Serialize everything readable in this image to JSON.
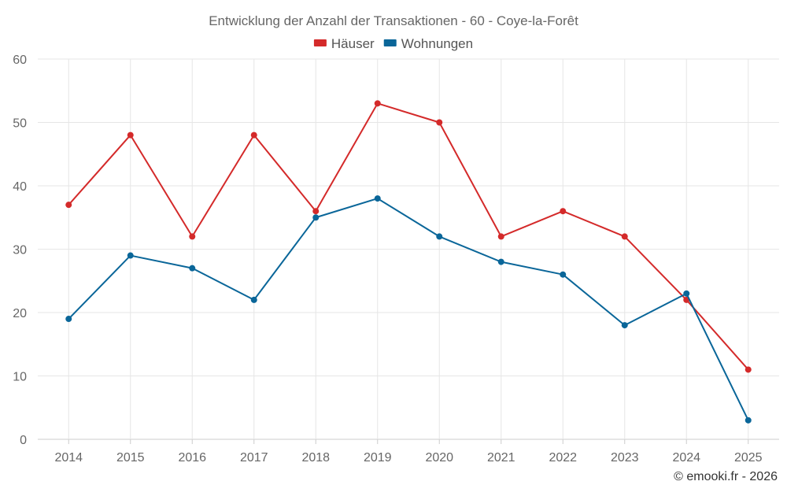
{
  "chart_data": {
    "type": "line",
    "title": "Entwicklung der Anzahl der Transaktionen - 60 - Coye-la-Forêt",
    "categories": [
      "2014",
      "2015",
      "2016",
      "2017",
      "2018",
      "2019",
      "2020",
      "2021",
      "2022",
      "2023",
      "2024",
      "2025"
    ],
    "series": [
      {
        "name": "Häuser",
        "color": "#d42a2a",
        "values": [
          37,
          48,
          32,
          48,
          36,
          53,
          50,
          32,
          36,
          32,
          22,
          11
        ]
      },
      {
        "name": "Wohnungen",
        "color": "#0a6699",
        "values": [
          19,
          29,
          27,
          22,
          35,
          38,
          32,
          28,
          26,
          18,
          23,
          3
        ]
      }
    ],
    "ylim": [
      0,
      60
    ],
    "yticks": [
      0,
      10,
      20,
      30,
      40,
      50,
      60
    ],
    "grid": true,
    "legend": "top-center"
  },
  "credit": "© emooki.fr - 2026"
}
